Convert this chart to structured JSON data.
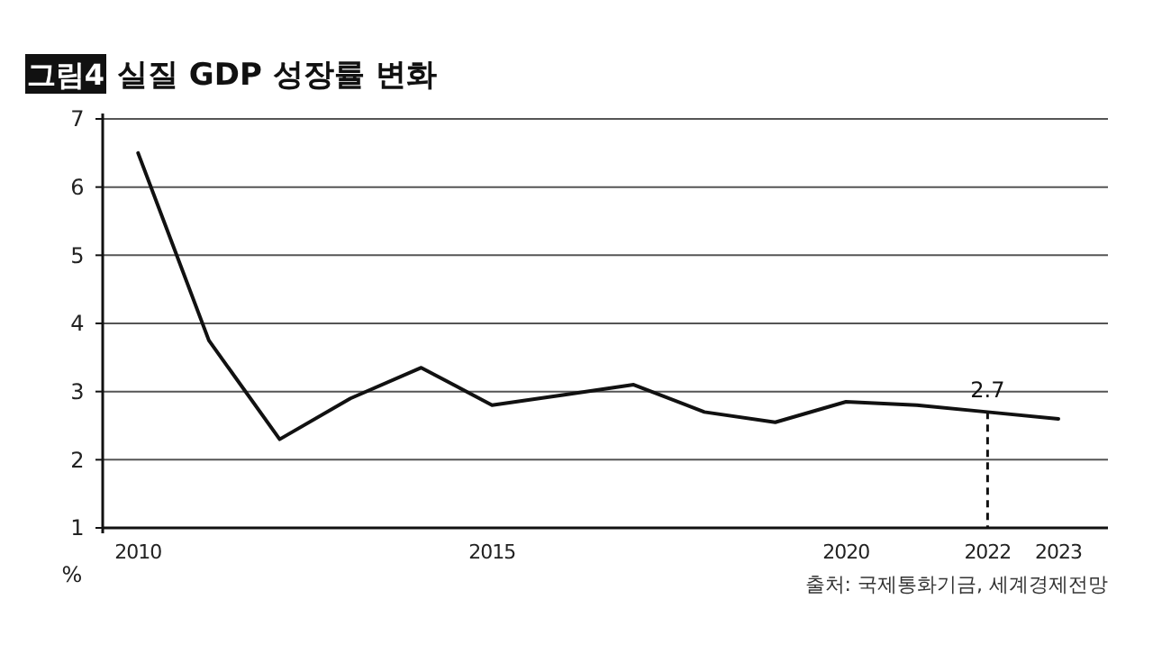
{
  "chart_data": {
    "type": "line",
    "title": "그림4 실질 GDP 성장률 변화",
    "ylabel": "%",
    "x": [
      2010,
      2011,
      2012,
      2013,
      2014,
      2015,
      2016,
      2017,
      2018,
      2019,
      2020,
      2021,
      2022,
      2023
    ],
    "series": [
      {
        "color": "#111111",
        "values": [
          6.5,
          3.75,
          2.3,
          2.9,
          3.35,
          2.8,
          2.95,
          3.1,
          2.7,
          2.55,
          2.85,
          2.8,
          2.7,
          2.6
        ]
      }
    ],
    "xlim": [
      2009.5,
      2023.7
    ],
    "xticks": [
      2010,
      2015,
      2020,
      2022,
      2023
    ],
    "ylim": [
      1,
      7
    ],
    "yticks": [
      1,
      2,
      3,
      4,
      5,
      6,
      7
    ],
    "grid": "y",
    "marker": "none",
    "line_style": "solid",
    "annotations": [
      {
        "text": "2.7",
        "x": 2022,
        "y": 2.7
      },
      "출처: 국제통화기금, 세계경제전망"
    ]
  }
}
